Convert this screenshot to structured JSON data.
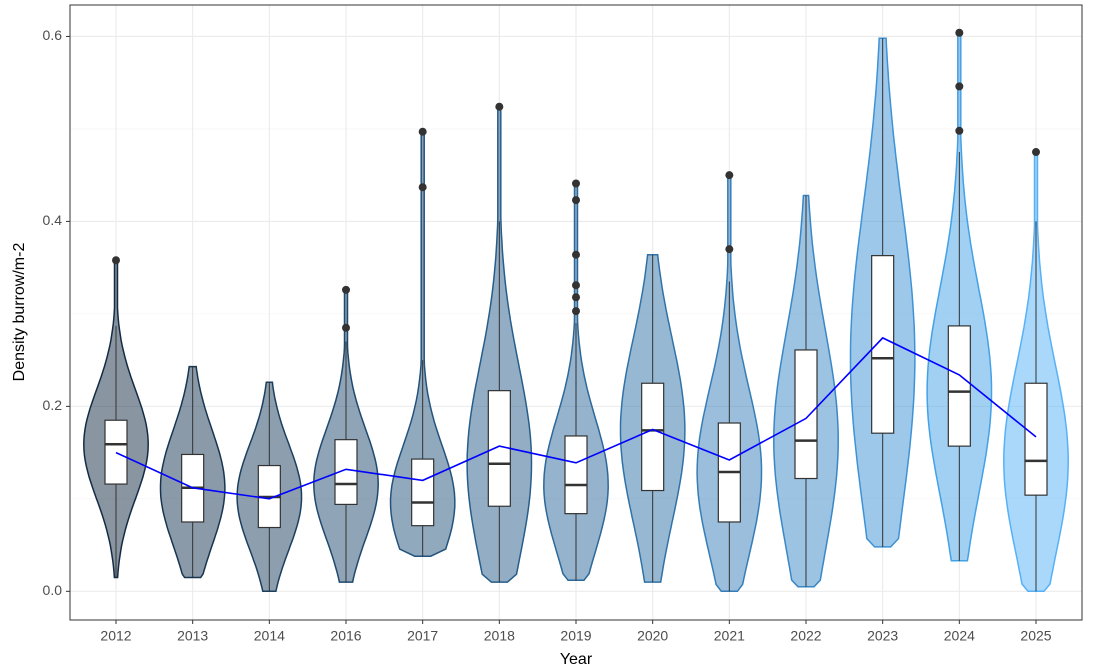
{
  "chart_data": {
    "type": "violin",
    "x_label": "Year",
    "y_label": "Density burrow/m-2",
    "categories": [
      "2012",
      "2013",
      "2014",
      "2016",
      "2017",
      "2018",
      "2019",
      "2020",
      "2021",
      "2022",
      "2023",
      "2024",
      "2025"
    ],
    "colors": [
      "#132B43",
      "#173551",
      "#1B3F5F",
      "#1F496D",
      "#23537C",
      "#275D8A",
      "#2C6899",
      "#3072A8",
      "#357DB7",
      "#3987C6",
      "#3E92D6",
      "#43A1E6",
      "#56B1F7"
    ],
    "violin_min": [
      0.015,
      0.015,
      0.0,
      0.01,
      0.038,
      0.01,
      0.012,
      0.01,
      0.0,
      0.005,
      0.048,
      0.033,
      0.0
    ],
    "violin_max": [
      0.358,
      0.243,
      0.226,
      0.326,
      0.497,
      0.524,
      0.441,
      0.364,
      0.45,
      0.428,
      0.598,
      0.604,
      0.475
    ],
    "whisker_low": [
      0.015,
      0.015,
      0.0,
      0.01,
      0.038,
      0.01,
      0.012,
      0.01,
      0.0,
      0.005,
      0.048,
      0.033,
      0.0
    ],
    "q1": [
      0.116,
      0.075,
      0.069,
      0.094,
      0.071,
      0.092,
      0.084,
      0.109,
      0.075,
      0.122,
      0.171,
      0.157,
      0.104
    ],
    "median": [
      0.159,
      0.112,
      0.102,
      0.116,
      0.096,
      0.138,
      0.115,
      0.174,
      0.129,
      0.163,
      0.252,
      0.216,
      0.141
    ],
    "q3": [
      0.185,
      0.148,
      0.136,
      0.164,
      0.143,
      0.217,
      0.168,
      0.225,
      0.182,
      0.261,
      0.363,
      0.287,
      0.225
    ],
    "whisker_high": [
      0.287,
      0.243,
      0.226,
      0.27,
      0.25,
      0.4,
      0.29,
      0.364,
      0.335,
      0.428,
      0.598,
      0.475,
      0.4
    ],
    "outliers": [
      [
        0.358
      ],
      [],
      [],
      [
        0.326,
        0.285
      ],
      [
        0.497,
        0.437
      ],
      [
        0.524
      ],
      [
        0.441,
        0.423,
        0.364,
        0.331,
        0.318,
        0.303
      ],
      [],
      [
        0.45,
        0.37
      ],
      [],
      [],
      [
        0.604,
        0.546,
        0.498
      ],
      [
        0.475
      ]
    ],
    "mean": {
      "color": "#0000ff",
      "values": [
        0.15,
        0.112,
        0.1,
        0.132,
        0.12,
        0.157,
        0.139,
        0.175,
        0.142,
        0.187,
        0.274,
        0.234,
        0.167
      ]
    },
    "ylim": [
      -0.031,
      0.634
    ],
    "yticks": [
      {
        "value": 0,
        "label": "0.0"
      },
      0.2,
      0.4,
      0.6
    ],
    "minor_yticks": [
      0.1,
      0.3,
      0.5
    ],
    "grid": true
  }
}
